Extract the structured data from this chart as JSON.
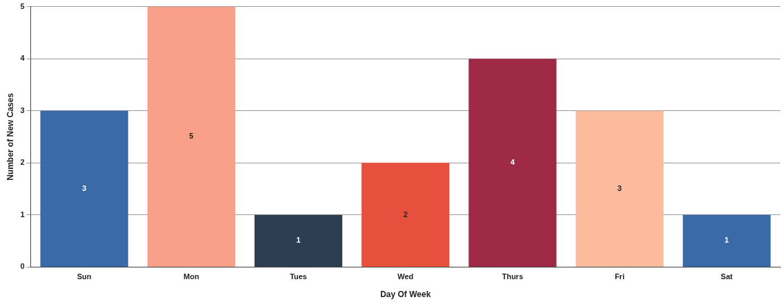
{
  "chart_data": {
    "type": "bar",
    "xlabel": "Day Of Week",
    "ylabel": "Number of New Cases",
    "categories": [
      "Sun",
      "Mon",
      "Tues",
      "Wed",
      "Thurs",
      "Fri",
      "Sat"
    ],
    "values": [
      3,
      5,
      1,
      2,
      4,
      3,
      1
    ],
    "colors": [
      "#3a6aa8",
      "#f8a08a",
      "#2d3e52",
      "#e8503e",
      "#9e2a45",
      "#fbbb9c",
      "#3a6aa8"
    ],
    "ylim": [
      0,
      5
    ],
    "yticks": [
      0,
      1,
      2,
      3,
      4,
      5
    ],
    "grid": "y",
    "data_labels": true,
    "legend": false
  }
}
